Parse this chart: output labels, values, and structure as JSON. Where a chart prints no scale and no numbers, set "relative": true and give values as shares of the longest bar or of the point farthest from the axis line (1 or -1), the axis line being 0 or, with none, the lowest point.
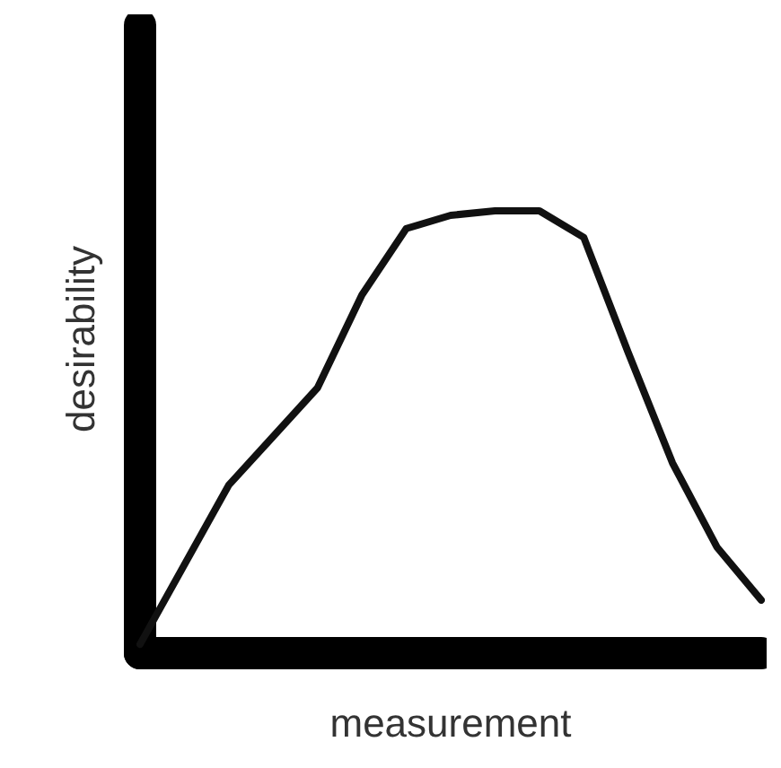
{
  "chart_data": {
    "type": "line",
    "relative": true,
    "xlabel": "measurement",
    "ylabel": "desirability",
    "color": "#111111",
    "marker": "none",
    "categories": [
      null,
      null,
      null,
      null,
      null,
      null,
      null,
      null,
      null,
      null,
      null,
      null,
      null,
      null,
      null
    ],
    "values": [
      0.02,
      0.2,
      0.38,
      0.49,
      0.6,
      0.81,
      0.96,
      0.99,
      1,
      1,
      0.94,
      0.68,
      0.43,
      0.24,
      0.12
    ]
  }
}
